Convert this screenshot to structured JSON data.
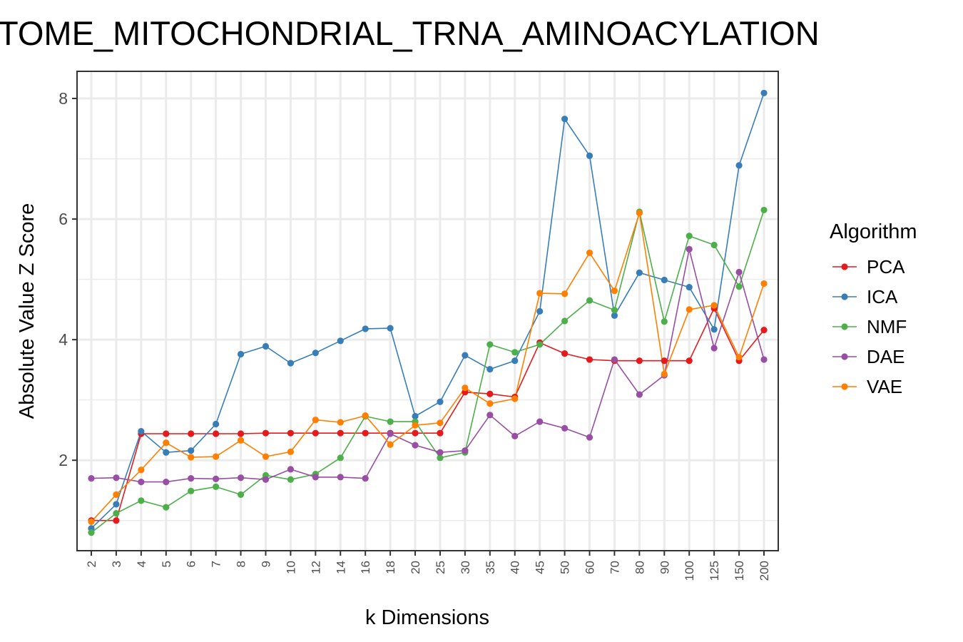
{
  "chart_data": {
    "type": "line",
    "title": "TOME_MITOCHONDRIAL_TRNA_AMINOACYLATION",
    "xlabel": "k Dimensions",
    "ylabel": "Absolute Value Z Score",
    "categories": [
      "2",
      "3",
      "4",
      "5",
      "6",
      "7",
      "8",
      "9",
      "10",
      "12",
      "14",
      "16",
      "18",
      "20",
      "25",
      "30",
      "35",
      "40",
      "45",
      "50",
      "60",
      "70",
      "80",
      "90",
      "100",
      "125",
      "150",
      "200"
    ],
    "ylim": [
      0.5,
      8.45
    ],
    "yticks": [
      2,
      4,
      6,
      8
    ],
    "yticks_labels": [
      "2",
      "4",
      "6",
      "8"
    ],
    "grid": true,
    "legend": {
      "title": "Algorithm",
      "position": "right"
    },
    "series": [
      {
        "name": "PCA",
        "color": "#e41a1c",
        "values": [
          1.0,
          1.0,
          2.44,
          2.44,
          2.44,
          2.44,
          2.44,
          2.45,
          2.45,
          2.45,
          2.45,
          2.45,
          2.45,
          2.45,
          2.45,
          3.13,
          3.1,
          3.05,
          3.95,
          3.77,
          3.67,
          3.65,
          3.65,
          3.65,
          3.65,
          4.52,
          3.65,
          4.16
        ]
      },
      {
        "name": "ICA",
        "color": "#377eb8",
        "values": [
          0.87,
          1.27,
          2.48,
          2.13,
          2.16,
          2.6,
          3.76,
          3.89,
          3.61,
          3.78,
          3.98,
          4.18,
          4.19,
          2.73,
          2.97,
          3.74,
          3.51,
          3.65,
          4.47,
          7.66,
          7.05,
          4.4,
          5.11,
          4.99,
          4.87,
          4.17,
          6.89,
          8.09
        ]
      },
      {
        "name": "NMF",
        "color": "#4daf4a",
        "values": [
          0.8,
          1.12,
          1.33,
          1.22,
          1.49,
          1.56,
          1.43,
          1.75,
          1.68,
          1.77,
          2.04,
          2.73,
          2.64,
          2.64,
          2.04,
          2.13,
          3.92,
          3.79,
          3.92,
          4.31,
          4.65,
          4.49,
          6.12,
          4.3,
          5.72,
          5.57,
          4.88,
          6.15
        ]
      },
      {
        "name": "DAE",
        "color": "#984ea3",
        "values": [
          1.7,
          1.71,
          1.64,
          1.64,
          1.7,
          1.69,
          1.71,
          1.68,
          1.85,
          1.72,
          1.72,
          1.7,
          2.44,
          2.25,
          2.13,
          2.16,
          2.75,
          2.4,
          2.64,
          2.53,
          2.38,
          3.67,
          3.09,
          3.41,
          5.5,
          3.86,
          5.12,
          3.67
        ]
      },
      {
        "name": "VAE",
        "color": "#ff7f00",
        "values": [
          0.98,
          1.43,
          1.84,
          2.29,
          2.05,
          2.06,
          2.33,
          2.06,
          2.14,
          2.67,
          2.63,
          2.74,
          2.26,
          2.58,
          2.62,
          3.2,
          2.94,
          3.02,
          4.77,
          4.76,
          5.44,
          4.81,
          6.1,
          3.43,
          4.5,
          4.57,
          3.71,
          4.93
        ]
      }
    ]
  }
}
